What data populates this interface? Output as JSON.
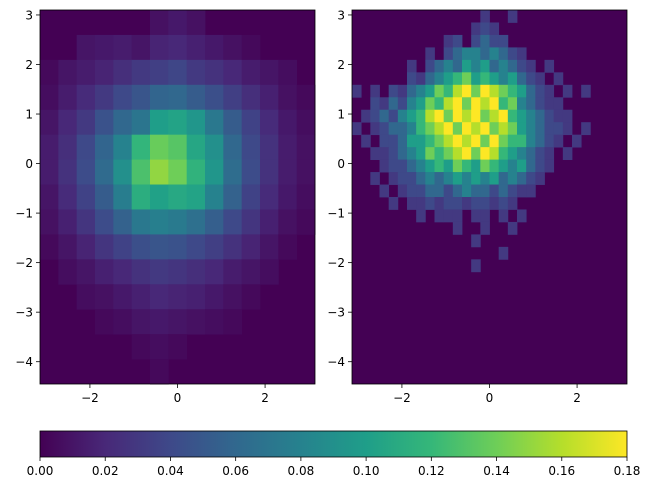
{
  "chart_data": [
    {
      "type": "heatmap",
      "title": "",
      "xlabel": "",
      "ylabel": "",
      "xlim": [
        -3.14,
        3.14
      ],
      "ylim": [
        -4.45,
        3.1
      ],
      "x_ticks": [
        -2,
        0,
        2
      ],
      "x_tick_labels": [
        "−2",
        "0",
        "2"
      ],
      "y_ticks": [
        3,
        2,
        1,
        0,
        -1,
        -2,
        -3,
        -4
      ],
      "y_tick_labels": [
        "3",
        "2",
        "1",
        "0",
        "−1",
        "−2",
        "−3",
        "−4"
      ],
      "bins": {
        "x_bins": 15,
        "y_bins": 15
      },
      "values": [
        [
          0.0,
          0.0,
          0.0,
          0.0,
          0.0,
          0.0,
          0.008,
          0.012,
          0.008,
          0.0,
          0.0,
          0.0,
          0.0,
          0.0,
          0.0
        ],
        [
          0.0,
          0.0,
          0.01,
          0.012,
          0.014,
          0.01,
          0.018,
          0.02,
          0.016,
          0.012,
          0.008,
          0.004,
          0.0,
          0.0,
          0.0
        ],
        [
          0.004,
          0.01,
          0.014,
          0.018,
          0.024,
          0.03,
          0.034,
          0.038,
          0.03,
          0.026,
          0.02,
          0.014,
          0.01,
          0.006,
          0.0
        ],
        [
          0.006,
          0.014,
          0.022,
          0.03,
          0.04,
          0.048,
          0.058,
          0.06,
          0.052,
          0.044,
          0.034,
          0.024,
          0.016,
          0.008,
          0.004
        ],
        [
          0.01,
          0.02,
          0.03,
          0.046,
          0.06,
          0.07,
          0.1,
          0.104,
          0.094,
          0.072,
          0.052,
          0.036,
          0.022,
          0.012,
          0.006
        ],
        [
          0.014,
          0.024,
          0.04,
          0.058,
          0.08,
          0.118,
          0.138,
          0.132,
          0.106,
          0.09,
          0.06,
          0.04,
          0.026,
          0.014,
          0.008
        ],
        [
          0.014,
          0.026,
          0.042,
          0.062,
          0.09,
          0.128,
          0.15,
          0.14,
          0.116,
          0.094,
          0.064,
          0.042,
          0.026,
          0.014,
          0.008
        ],
        [
          0.01,
          0.022,
          0.036,
          0.052,
          0.076,
          0.112,
          0.102,
          0.108,
          0.104,
          0.08,
          0.056,
          0.036,
          0.022,
          0.012,
          0.006
        ],
        [
          0.008,
          0.016,
          0.028,
          0.042,
          0.056,
          0.072,
          0.078,
          0.074,
          0.066,
          0.054,
          0.04,
          0.028,
          0.016,
          0.008,
          0.004
        ],
        [
          0.004,
          0.01,
          0.018,
          0.028,
          0.036,
          0.044,
          0.048,
          0.046,
          0.04,
          0.034,
          0.026,
          0.018,
          0.01,
          0.004,
          0.0
        ],
        [
          0.0,
          0.006,
          0.01,
          0.016,
          0.02,
          0.026,
          0.03,
          0.028,
          0.024,
          0.02,
          0.014,
          0.01,
          0.006,
          0.0,
          0.0
        ],
        [
          0.0,
          0.0,
          0.006,
          0.008,
          0.012,
          0.016,
          0.02,
          0.018,
          0.016,
          0.012,
          0.008,
          0.004,
          0.0,
          0.0,
          0.0
        ],
        [
          0.0,
          0.0,
          0.0,
          0.004,
          0.006,
          0.01,
          0.012,
          0.01,
          0.008,
          0.006,
          0.004,
          0.0,
          0.0,
          0.0,
          0.0
        ],
        [
          0.0,
          0.0,
          0.0,
          0.0,
          0.0,
          0.004,
          0.006,
          0.004,
          0.0,
          0.0,
          0.0,
          0.0,
          0.0,
          0.0,
          0.0
        ],
        [
          0.0,
          0.0,
          0.0,
          0.0,
          0.0,
          0.0,
          0.004,
          0.0,
          0.0,
          0.0,
          0.0,
          0.0,
          0.0,
          0.0,
          0.0
        ]
      ]
    },
    {
      "type": "heatmap",
      "title": "",
      "xlabel": "",
      "ylabel": "",
      "xlim": [
        -3.14,
        3.14
      ],
      "ylim": [
        -4.45,
        3.1
      ],
      "x_ticks": [
        -2,
        0,
        2
      ],
      "x_tick_labels": [
        "−2",
        "0",
        "2"
      ],
      "y_ticks": [
        3,
        2,
        1,
        0,
        -1,
        -2,
        -3,
        -4
      ],
      "y_tick_labels": [
        "3",
        "2",
        "1",
        "0",
        "−1",
        "−2",
        "−3",
        "−4"
      ],
      "bins": {
        "x_bins": 30,
        "y_bins": 30
      },
      "values": [
        [
          0,
          0,
          0,
          0,
          0,
          0,
          0,
          0,
          0,
          0,
          0,
          0,
          0,
          0,
          0.03,
          0,
          0,
          0.03,
          0,
          0,
          0,
          0,
          0,
          0,
          0,
          0,
          0,
          0,
          0,
          0
        ],
        [
          0,
          0,
          0,
          0,
          0,
          0,
          0,
          0,
          0,
          0,
          0,
          0,
          0,
          0.03,
          0.04,
          0.03,
          0,
          0,
          0,
          0,
          0,
          0,
          0,
          0,
          0,
          0,
          0,
          0,
          0,
          0
        ],
        [
          0,
          0,
          0,
          0,
          0,
          0,
          0,
          0,
          0,
          0,
          0.03,
          0.04,
          0,
          0.04,
          0.06,
          0.04,
          0.04,
          0,
          0,
          0,
          0,
          0,
          0,
          0,
          0,
          0,
          0,
          0,
          0,
          0
        ],
        [
          0,
          0,
          0,
          0,
          0,
          0,
          0,
          0,
          0.03,
          0,
          0.04,
          0.06,
          0.08,
          0.08,
          0.06,
          0.08,
          0.06,
          0.04,
          0.03,
          0,
          0,
          0,
          0,
          0,
          0,
          0,
          0,
          0,
          0,
          0
        ],
        [
          0,
          0,
          0,
          0,
          0,
          0,
          0.03,
          0,
          0.04,
          0.06,
          0.08,
          0.06,
          0.1,
          0.08,
          0.1,
          0.06,
          0.08,
          0.06,
          0.04,
          0.03,
          0,
          0.03,
          0,
          0,
          0,
          0,
          0,
          0,
          0,
          0
        ],
        [
          0,
          0,
          0,
          0,
          0,
          0,
          0.04,
          0.03,
          0.06,
          0.08,
          0.1,
          0.12,
          0.14,
          0.1,
          0.12,
          0.1,
          0.08,
          0.1,
          0.06,
          0.04,
          0.03,
          0,
          0.03,
          0,
          0,
          0,
          0,
          0,
          0,
          0
        ],
        [
          0.03,
          0,
          0.03,
          0,
          0.04,
          0.03,
          0.06,
          0.08,
          0.1,
          0.14,
          0.12,
          0.16,
          0.18,
          0.14,
          0.18,
          0.16,
          0.14,
          0.12,
          0.1,
          0.06,
          0.04,
          0.03,
          0,
          0.03,
          0,
          0.03,
          0,
          0,
          0,
          0
        ],
        [
          0,
          0,
          0.04,
          0.03,
          0.06,
          0.04,
          0.08,
          0.1,
          0.14,
          0.12,
          0.16,
          0.18,
          0.14,
          0.18,
          0.16,
          0.18,
          0.12,
          0.14,
          0.08,
          0.06,
          0.04,
          0.03,
          0.03,
          0,
          0,
          0,
          0,
          0,
          0,
          0
        ],
        [
          0,
          0.03,
          0.04,
          0.06,
          0.04,
          0.08,
          0.1,
          0.12,
          0.16,
          0.18,
          0.14,
          0.18,
          0.16,
          0.18,
          0.14,
          0.16,
          0.18,
          0.12,
          0.1,
          0.08,
          0.06,
          0.04,
          0.03,
          0.03,
          0,
          0,
          0,
          0,
          0,
          0
        ],
        [
          0.03,
          0,
          0.03,
          0.04,
          0.06,
          0.06,
          0.08,
          0.12,
          0.14,
          0.16,
          0.18,
          0.14,
          0.18,
          0.16,
          0.18,
          0.14,
          0.16,
          0.14,
          0.1,
          0.08,
          0.06,
          0.04,
          0.04,
          0.03,
          0,
          0.03,
          0,
          0,
          0,
          0
        ],
        [
          0,
          0.03,
          0,
          0.04,
          0.04,
          0.06,
          0.1,
          0.1,
          0.12,
          0.14,
          0.16,
          0.18,
          0.16,
          0.18,
          0.14,
          0.18,
          0.14,
          0.12,
          0.12,
          0.08,
          0.06,
          0.04,
          0.03,
          0,
          0.03,
          0,
          0,
          0,
          0,
          0
        ],
        [
          0,
          0,
          0.03,
          0.03,
          0.04,
          0.06,
          0.08,
          0.1,
          0.14,
          0.12,
          0.14,
          0.16,
          0.18,
          0.14,
          0.18,
          0.16,
          0.12,
          0.1,
          0.08,
          0.06,
          0.04,
          0.03,
          0,
          0.03,
          0,
          0,
          0,
          0,
          0,
          0
        ],
        [
          0,
          0,
          0,
          0.03,
          0.04,
          0.04,
          0.06,
          0.08,
          0.1,
          0.12,
          0.1,
          0.14,
          0.12,
          0.1,
          0.14,
          0.12,
          0.1,
          0.08,
          0.1,
          0.06,
          0.04,
          0.03,
          0,
          0,
          0,
          0,
          0,
          0,
          0,
          0
        ],
        [
          0,
          0,
          0.03,
          0,
          0.03,
          0.04,
          0.04,
          0.06,
          0.08,
          0.06,
          0.08,
          0.1,
          0.08,
          0.1,
          0.08,
          0.1,
          0.06,
          0.08,
          0.06,
          0.04,
          0.03,
          0,
          0,
          0,
          0,
          0,
          0,
          0,
          0,
          0
        ],
        [
          0,
          0,
          0,
          0.03,
          0,
          0.03,
          0.04,
          0.04,
          0.06,
          0.06,
          0.04,
          0.06,
          0.08,
          0.06,
          0.06,
          0.04,
          0.06,
          0.04,
          0.03,
          0.03,
          0,
          0,
          0,
          0,
          0,
          0,
          0,
          0,
          0,
          0
        ],
        [
          0,
          0,
          0,
          0,
          0.03,
          0,
          0.03,
          0.03,
          0.04,
          0.03,
          0.04,
          0.04,
          0.03,
          0.04,
          0.04,
          0.03,
          0.04,
          0.03,
          0,
          0,
          0,
          0,
          0,
          0,
          0,
          0,
          0,
          0,
          0,
          0
        ],
        [
          0,
          0,
          0,
          0,
          0,
          0,
          0,
          0.03,
          0,
          0.03,
          0.03,
          0.03,
          0,
          0.03,
          0.03,
          0,
          0.03,
          0,
          0.03,
          0,
          0,
          0,
          0,
          0,
          0,
          0,
          0,
          0,
          0,
          0
        ],
        [
          0,
          0,
          0,
          0,
          0,
          0,
          0,
          0,
          0,
          0,
          0,
          0.03,
          0,
          0,
          0.03,
          0,
          0,
          0.03,
          0,
          0,
          0,
          0,
          0,
          0,
          0,
          0,
          0,
          0,
          0,
          0
        ],
        [
          0,
          0,
          0,
          0,
          0,
          0,
          0,
          0,
          0,
          0,
          0,
          0,
          0,
          0.03,
          0,
          0,
          0,
          0,
          0,
          0,
          0,
          0,
          0,
          0,
          0,
          0,
          0,
          0,
          0,
          0
        ],
        [
          0,
          0,
          0,
          0,
          0,
          0,
          0,
          0,
          0,
          0,
          0,
          0,
          0,
          0,
          0,
          0,
          0.03,
          0,
          0,
          0,
          0,
          0,
          0,
          0,
          0,
          0,
          0,
          0,
          0,
          0
        ],
        [
          0,
          0,
          0,
          0,
          0,
          0,
          0,
          0,
          0,
          0,
          0,
          0,
          0,
          0.03,
          0,
          0,
          0,
          0,
          0,
          0,
          0,
          0,
          0,
          0,
          0,
          0,
          0,
          0,
          0,
          0
        ],
        [
          0,
          0,
          0,
          0,
          0,
          0,
          0,
          0,
          0,
          0,
          0,
          0,
          0,
          0,
          0,
          0,
          0,
          0,
          0,
          0,
          0,
          0,
          0,
          0,
          0,
          0,
          0,
          0,
          0,
          0
        ],
        [
          0,
          0,
          0,
          0,
          0,
          0,
          0,
          0,
          0,
          0,
          0,
          0,
          0,
          0,
          0,
          0,
          0,
          0,
          0,
          0,
          0,
          0,
          0,
          0,
          0,
          0,
          0,
          0,
          0,
          0
        ],
        [
          0,
          0,
          0,
          0,
          0,
          0,
          0,
          0,
          0,
          0,
          0,
          0,
          0,
          0,
          0,
          0,
          0,
          0,
          0,
          0,
          0,
          0,
          0,
          0,
          0,
          0,
          0,
          0,
          0,
          0
        ],
        [
          0,
          0,
          0,
          0,
          0,
          0,
          0,
          0,
          0,
          0,
          0,
          0,
          0,
          0,
          0,
          0,
          0,
          0,
          0,
          0,
          0,
          0,
          0,
          0,
          0,
          0,
          0,
          0,
          0,
          0
        ],
        [
          0,
          0,
          0,
          0,
          0,
          0,
          0,
          0,
          0,
          0,
          0,
          0,
          0,
          0,
          0,
          0,
          0,
          0,
          0,
          0,
          0,
          0,
          0,
          0,
          0,
          0,
          0,
          0,
          0,
          0
        ],
        [
          0,
          0,
          0,
          0,
          0,
          0,
          0,
          0,
          0,
          0,
          0,
          0,
          0,
          0,
          0,
          0,
          0,
          0,
          0,
          0,
          0,
          0,
          0,
          0,
          0,
          0,
          0,
          0,
          0,
          0
        ],
        [
          0,
          0,
          0,
          0,
          0,
          0,
          0,
          0,
          0,
          0,
          0,
          0,
          0,
          0,
          0,
          0,
          0,
          0,
          0,
          0,
          0,
          0,
          0,
          0,
          0,
          0,
          0,
          0,
          0,
          0
        ],
        [
          0,
          0,
          0,
          0,
          0,
          0,
          0,
          0,
          0,
          0,
          0,
          0,
          0,
          0,
          0,
          0,
          0,
          0,
          0,
          0,
          0,
          0,
          0,
          0,
          0,
          0,
          0,
          0,
          0,
          0
        ],
        [
          0,
          0,
          0,
          0,
          0,
          0,
          0,
          0,
          0,
          0,
          0,
          0,
          0,
          0,
          0,
          0,
          0,
          0,
          0,
          0,
          0,
          0,
          0,
          0,
          0,
          0,
          0,
          0,
          0,
          0
        ]
      ]
    }
  ],
  "colorbar": {
    "colormap": "viridis",
    "range": [
      0.0,
      0.18
    ],
    "orientation": "horizontal",
    "ticks": [
      0.0,
      0.02,
      0.04,
      0.06,
      0.08,
      0.1,
      0.12,
      0.14,
      0.16,
      0.18
    ],
    "tick_labels": [
      "0.00",
      "0.02",
      "0.04",
      "0.06",
      "0.08",
      "0.10",
      "0.12",
      "0.14",
      "0.16",
      "0.18"
    ]
  },
  "colors": {
    "viridis_stops": [
      "#440154",
      "#482878",
      "#3e4989",
      "#31688e",
      "#26828e",
      "#1f9e89",
      "#35b779",
      "#6ece58",
      "#b5de2b",
      "#fde725"
    ],
    "axis": "#000000",
    "background": "#ffffff"
  }
}
